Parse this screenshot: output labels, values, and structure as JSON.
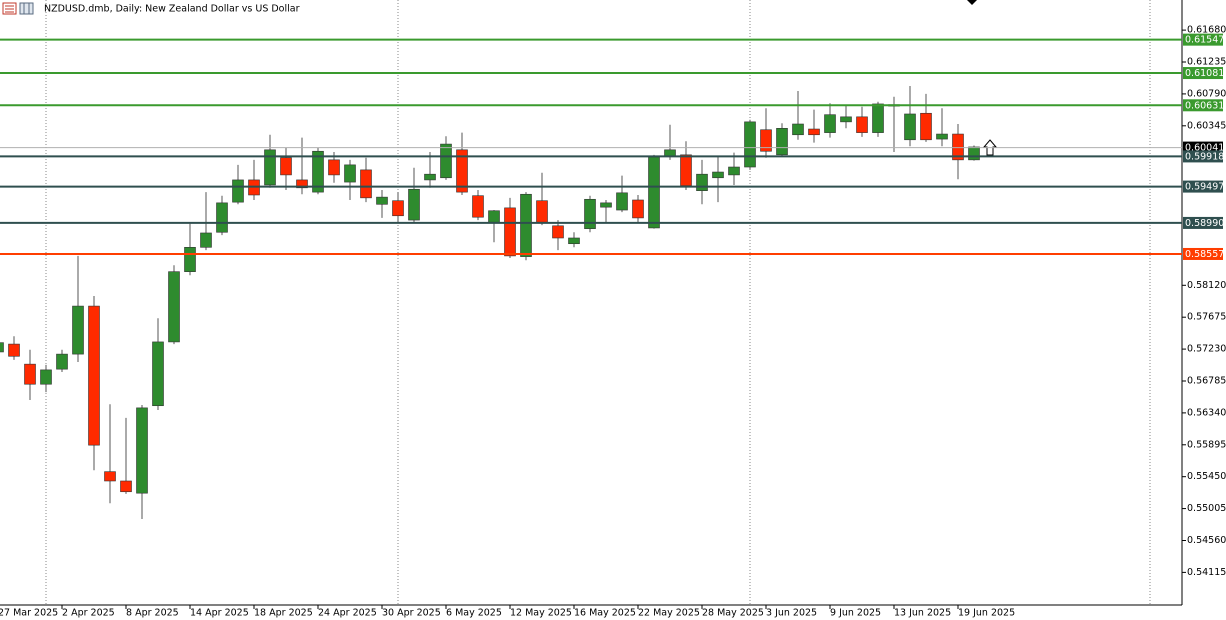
{
  "chart_data": {
    "type": "candlestick",
    "title": "NZDUSD.dmb, Daily:  New Zealand Dollar vs US Dollar",
    "categories": [
      "27 Mar 2025",
      null,
      null,
      null,
      "2 Apr 2025",
      null,
      null,
      null,
      "8 Apr 2025",
      null,
      null,
      null,
      "14 Apr 2025",
      null,
      null,
      null,
      "18 Apr 2025",
      null,
      null,
      null,
      "24 Apr 2025",
      null,
      null,
      null,
      "30 Apr 2025",
      null,
      null,
      null,
      "6 May 2025",
      null,
      null,
      null,
      "12 May 2025",
      null,
      null,
      null,
      "16 May 2025",
      null,
      null,
      null,
      "22 May 2025",
      null,
      null,
      null,
      "28 May 2025",
      null,
      null,
      null,
      "3 Jun 2025",
      null,
      null,
      null,
      "9 Jun 2025",
      null,
      null,
      null,
      "13 Jun 2025",
      null,
      null,
      null,
      "19 Jun 2025",
      null
    ],
    "open": [
      0.5719,
      0.573,
      0.5702,
      0.5674,
      0.5695,
      0.5716,
      0.5783,
      0.5552,
      0.5539,
      0.5522,
      0.5644,
      0.5733,
      0.5831,
      0.5865,
      0.5886,
      0.5928,
      0.5959,
      0.5952,
      0.599,
      0.5959,
      0.5942,
      0.5987,
      0.5956,
      0.5973,
      0.5925,
      0.593,
      0.5903,
      0.5959,
      0.5962,
      0.6001,
      0.5937,
      0.59,
      0.592,
      0.5852,
      0.593,
      0.5895,
      0.587,
      0.5891,
      0.5921,
      0.5917,
      0.5931,
      0.5892,
      0.5992,
      0.5994,
      0.5944,
      0.5962,
      0.5966,
      0.5977,
      0.6029,
      0.5994,
      0.6022,
      0.603,
      0.6025,
      0.604,
      0.6047,
      0.6025,
      0.6062,
      0.6015,
      0.6052,
      0.6016,
      0.6023,
      0.5987
    ],
    "high": [
      0.5738,
      0.5741,
      0.5722,
      0.5701,
      0.5722,
      0.5853,
      0.5797,
      0.5646,
      0.5627,
      0.5645,
      0.5766,
      0.584,
      0.5898,
      0.5942,
      0.5937,
      0.598,
      0.5987,
      0.6022,
      0.6004,
      0.6018,
      0.6004,
      0.5998,
      0.5987,
      0.599,
      0.5945,
      0.5942,
      0.5976,
      0.5998,
      0.602,
      0.6025,
      0.5945,
      0.5917,
      0.5934,
      0.5942,
      0.5969,
      0.5903,
      0.5886,
      0.5937,
      0.5931,
      0.5965,
      0.5938,
      0.5994,
      0.6036,
      0.6013,
      0.5987,
      0.5992,
      0.5997,
      0.6043,
      0.6059,
      0.6038,
      0.6083,
      0.6057,
      0.6066,
      0.6064,
      0.6061,
      0.6068,
      0.6075,
      0.609,
      0.6079,
      0.6059,
      0.6037,
      0.6007
    ],
    "low": [
      0.5713,
      0.5708,
      0.5652,
      0.5663,
      0.5691,
      0.5705,
      0.5554,
      0.5508,
      0.5521,
      0.5486,
      0.5638,
      0.573,
      0.5826,
      0.5861,
      0.5882,
      0.5925,
      0.5931,
      0.5948,
      0.5945,
      0.5939,
      0.5939,
      0.5955,
      0.5931,
      0.5928,
      0.5906,
      0.59,
      0.59,
      0.5948,
      0.5959,
      0.5938,
      0.5903,
      0.5872,
      0.585,
      0.5847,
      0.5896,
      0.5861,
      0.5865,
      0.5886,
      0.59,
      0.5914,
      0.59,
      0.5891,
      0.5987,
      0.5945,
      0.5925,
      0.5928,
      0.5952,
      0.5973,
      0.599,
      0.5991,
      0.6015,
      0.6011,
      0.6018,
      0.6031,
      0.6019,
      0.6019,
      0.5998,
      0.6006,
      0.6012,
      0.6006,
      0.596,
      0.5986
    ],
    "close": [
      0.5732,
      0.5713,
      0.5674,
      0.5694,
      0.5716,
      0.5783,
      0.5589,
      0.5539,
      0.5524,
      0.5641,
      0.5733,
      0.5831,
      0.5865,
      0.5885,
      0.5927,
      0.5959,
      0.5938,
      0.6001,
      0.5966,
      0.5948,
      0.5999,
      0.5966,
      0.598,
      0.5934,
      0.5935,
      0.5909,
      0.5946,
      0.5967,
      0.6009,
      0.5942,
      0.5907,
      0.5916,
      0.5853,
      0.5939,
      0.59,
      0.5878,
      0.5878,
      0.5932,
      0.5927,
      0.5941,
      0.5906,
      0.5991,
      0.6001,
      0.5951,
      0.5967,
      0.597,
      0.5977,
      0.604,
      0.5999,
      0.6031,
      0.6037,
      0.6022,
      0.605,
      0.6047,
      0.6025,
      0.6065,
      0.6064,
      0.6051,
      0.6015,
      0.6023,
      0.5987,
      0.6005
    ],
    "up_color": "#2e8b2e",
    "down_color": "#ff2a00",
    "ylim": [
      0.5366,
      0.621
    ],
    "yticks": [
      {
        "value": 0.6168,
        "label": "0.61680"
      },
      0.61235,
      {
        "value": 0.6079,
        "label": "0.60790"
      },
      0.60345,
      {
        "value": 0.5812,
        "label": "0.58120"
      },
      0.57675,
      {
        "value": 0.5723,
        "label": "0.57230"
      },
      0.56785,
      {
        "value": 0.5634,
        "label": "0.56340"
      },
      0.55895,
      {
        "value": 0.5545,
        "label": "0.55450"
      },
      0.55005,
      {
        "value": 0.5456,
        "label": "0.54560"
      },
      0.54115
    ],
    "levels": [
      {
        "value": 0.61547,
        "color": "#3a9a2e"
      },
      {
        "value": 0.61081,
        "color": "#3a9a2e"
      },
      {
        "value": 0.60631,
        "color": "#3a9a2e"
      },
      {
        "value": 0.60041,
        "color": "#000000"
      },
      {
        "value": 0.59918,
        "color": "#2f4f4f"
      },
      {
        "value": 0.59497,
        "color": "#2f4f4f"
      },
      {
        "value": 0.5899,
        "label": "0.58990",
        "color": "#2f4f4f"
      },
      {
        "value": 0.58557,
        "color": "#ff3d00"
      }
    ]
  }
}
